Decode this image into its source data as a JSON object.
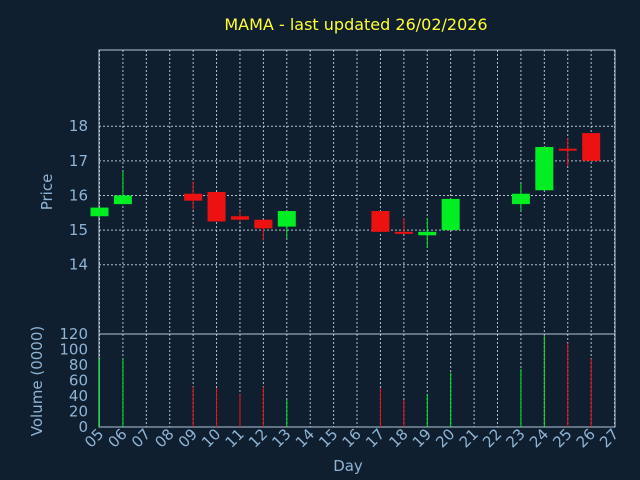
{
  "chart_data": {
    "type": "candlestick",
    "title": "MAMA - last updated 26/02/2026",
    "xlabel": "Day",
    "ylabel_price": "Price",
    "ylabel_volume": "Volume (0000)",
    "x_ticks": [
      "05",
      "06",
      "07",
      "08",
      "09",
      "10",
      "11",
      "12",
      "13",
      "14",
      "15",
      "16",
      "17",
      "18",
      "19",
      "20",
      "21",
      "22",
      "23",
      "24",
      "25",
      "26",
      "27"
    ],
    "price_ticks": [
      14,
      15,
      16,
      17,
      18
    ],
    "price_ylim": [
      12.0,
      20.2
    ],
    "volume_ticks": [
      0,
      20,
      40,
      60,
      80,
      100,
      120
    ],
    "volume_ylim": [
      0,
      120
    ],
    "grid": true,
    "colors": {
      "up": "#00ee22",
      "down": "#ee1111",
      "title": "#ffff33",
      "axis_text": "#8fb4d4",
      "background": "#0f1f30"
    },
    "candles": [
      {
        "day": "05",
        "open": 15.4,
        "high": 15.65,
        "low": 15.4,
        "close": 15.65,
        "volume": 88
      },
      {
        "day": "06",
        "open": 15.75,
        "high": 16.7,
        "low": 15.75,
        "close": 16.0,
        "volume": 88
      },
      {
        "day": "09",
        "open": 16.05,
        "high": 16.4,
        "low": 15.6,
        "close": 15.85,
        "volume": 52
      },
      {
        "day": "10",
        "open": 16.1,
        "high": 16.1,
        "low": 15.25,
        "close": 15.25,
        "volume": 50
      },
      {
        "day": "11",
        "open": 15.4,
        "high": 15.55,
        "low": 15.25,
        "close": 15.3,
        "volume": 42
      },
      {
        "day": "12",
        "open": 15.3,
        "high": 15.3,
        "low": 14.7,
        "close": 15.05,
        "volume": 52
      },
      {
        "day": "13",
        "open": 15.1,
        "high": 15.55,
        "low": 14.75,
        "close": 15.55,
        "volume": 35
      },
      {
        "day": "17",
        "open": 15.55,
        "high": 15.55,
        "low": 14.95,
        "close": 14.95,
        "volume": 50
      },
      {
        "day": "18",
        "open": 14.95,
        "high": 15.35,
        "low": 14.9,
        "close": 14.93,
        "volume": 35
      },
      {
        "day": "19",
        "open": 14.85,
        "high": 15.35,
        "low": 14.5,
        "close": 14.95,
        "volume": 42
      },
      {
        "day": "20",
        "open": 15.0,
        "high": 15.9,
        "low": 15.0,
        "close": 15.9,
        "volume": 70
      },
      {
        "day": "23",
        "open": 15.75,
        "high": 16.35,
        "low": 15.55,
        "close": 16.05,
        "volume": 75
      },
      {
        "day": "24",
        "open": 16.15,
        "high": 17.4,
        "low": 16.15,
        "close": 17.4,
        "volume": 118
      },
      {
        "day": "25",
        "open": 17.35,
        "high": 17.65,
        "low": 16.85,
        "close": 17.3,
        "volume": 108
      },
      {
        "day": "26",
        "open": 17.8,
        "high": 17.8,
        "low": 17.0,
        "close": 17.0,
        "volume": 88
      }
    ]
  }
}
